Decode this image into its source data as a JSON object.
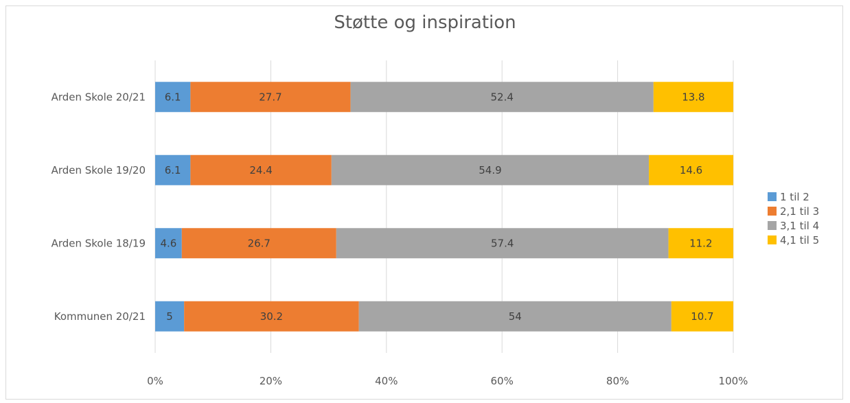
{
  "chart_data": {
    "type": "bar",
    "orientation": "horizontal",
    "stacked": "100%",
    "title": "Støtte og inspiration",
    "categories": [
      "Arden Skole 20/21",
      "Arden Skole 19/20",
      "Arden Skole 18/19",
      "Kommunen 20/21"
    ],
    "series": [
      {
        "name": "1 til 2",
        "color": "#5b9bd5",
        "values": [
          6.1,
          6.1,
          4.6,
          5
        ]
      },
      {
        "name": "2,1 til 3",
        "color": "#ed7d31",
        "values": [
          27.7,
          24.4,
          26.7,
          30.2
        ]
      },
      {
        "name": "3,1 til 4",
        "color": "#a5a5a5",
        "values": [
          52.4,
          54.9,
          57.4,
          54
        ]
      },
      {
        "name": "4,1 til 5",
        "color": "#ffc000",
        "values": [
          13.8,
          14.6,
          11.2,
          10.7
        ]
      }
    ],
    "x_ticks": [
      "0%",
      "20%",
      "40%",
      "60%",
      "80%",
      "100%"
    ],
    "xlim": [
      0,
      100
    ],
    "grid": true,
    "legend_position": "right"
  }
}
